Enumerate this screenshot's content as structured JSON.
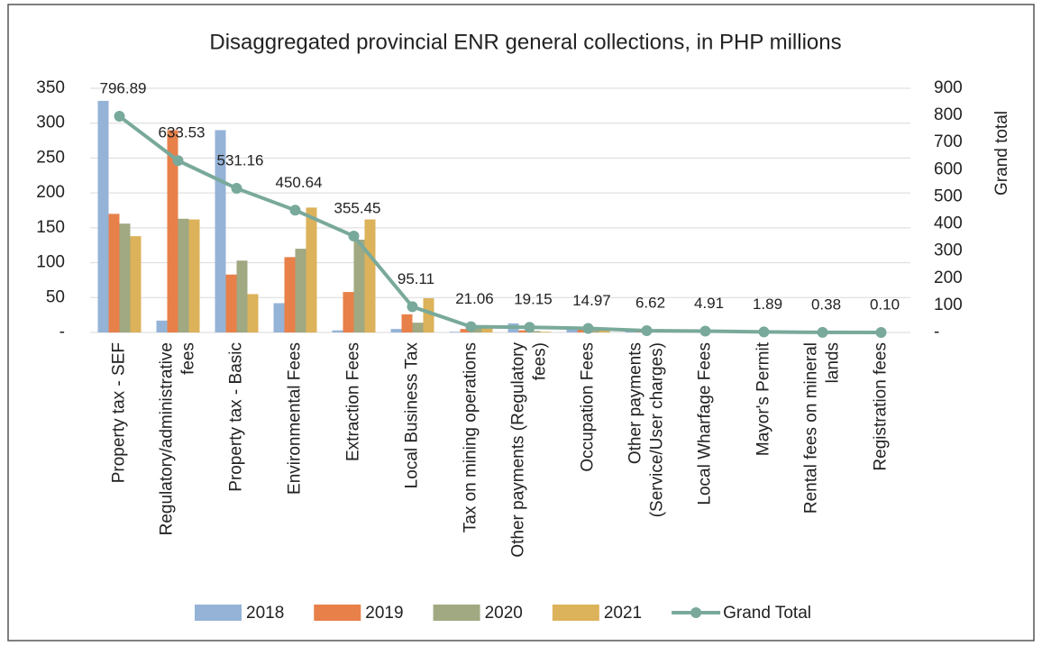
{
  "chart_data": {
    "type": "bar",
    "title": "Disaggregated provincial ENR general collections, in PHP millions",
    "y2_label": "Grand total",
    "categories": [
      "Property tax - SEF",
      "Regulatory/administrative fees",
      "Property tax - Basic",
      "Environmental Fees",
      "Extraction Fees",
      "Local Business Tax",
      "Tax on mining operations",
      "Other payments (Regulatory fees)",
      "Occupation Fees",
      "Other payments (Service/User charges)",
      "Local Wharfage Fees",
      "Mayor's Permit",
      "Rental fees on mineral lands",
      "Registration fees"
    ],
    "series": [
      {
        "name": "2018",
        "color": "#95b3d7",
        "values": [
          332,
          17,
          290,
          42,
          3,
          5,
          1,
          13,
          5,
          2,
          1,
          0.5,
          0.1,
          0.03
        ]
      },
      {
        "name": "2019",
        "color": "#e8804a",
        "values": [
          170,
          290,
          83,
          108,
          58,
          26,
          5,
          3,
          4,
          2,
          1,
          0.5,
          0.1,
          0.03
        ]
      },
      {
        "name": "2020",
        "color": "#a0a982",
        "values": [
          156,
          163,
          103,
          120,
          133,
          14,
          8,
          2,
          3,
          1,
          1,
          0.5,
          0.1,
          0.02
        ]
      },
      {
        "name": "2021",
        "color": "#dcb25a",
        "values": [
          138,
          162,
          55,
          179,
          162,
          49,
          7,
          1,
          3,
          1.6,
          1.9,
          0.4,
          0.08,
          0.02
        ]
      },
      {
        "name": "Grand Total",
        "color": "#79a99b",
        "axis": "y2",
        "type": "line",
        "values": [
          796.89,
          633.53,
          531.16,
          450.64,
          355.45,
          95.11,
          21.06,
          19.15,
          14.97,
          6.62,
          4.91,
          1.89,
          0.38,
          0.1
        ],
        "value_labels": [
          "796.89",
          "633.53",
          "531.16",
          "450.64",
          "355.45",
          "95.11",
          "21.06",
          "19.15",
          "14.97",
          "6.62",
          "4.91",
          "1.89",
          "0.38",
          "0.10"
        ]
      }
    ],
    "ylim": [
      0,
      350
    ],
    "yticks": [
      {
        "value": 0,
        "label": "-"
      },
      50,
      100,
      150,
      200,
      250,
      300,
      350
    ],
    "y2lim": [
      0,
      900
    ],
    "y2ticks": [
      {
        "value": 0,
        "label": "-"
      },
      100,
      200,
      300,
      400,
      500,
      600,
      700,
      800,
      900
    ],
    "grid": true,
    "legend": "bottom"
  }
}
